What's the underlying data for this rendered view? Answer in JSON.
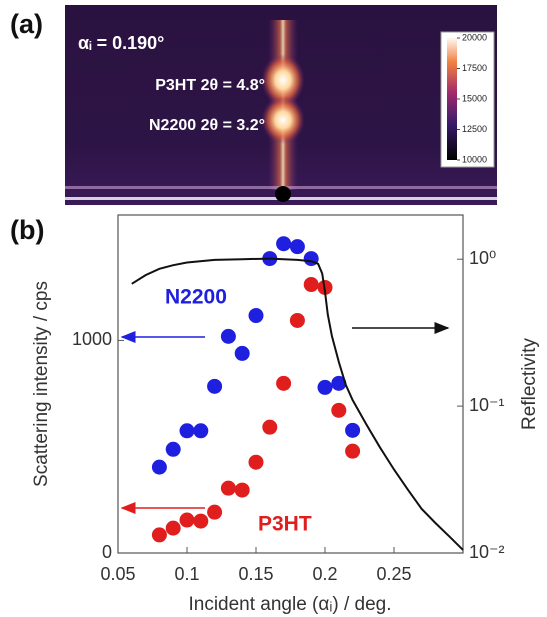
{
  "image": {
    "panel_label": "(a)",
    "incidence": "αᵢ = 0.190°",
    "p3ht_peak": "P3HT 2θ = 4.8°",
    "n2200_peak": "N2200 2θ = 3.2°",
    "colorbar": {
      "lim": [
        10000,
        20000
      ],
      "ticks": [
        20000,
        17500,
        15000,
        12500,
        10000
      ]
    }
  },
  "chart_data": {
    "type": "scatter",
    "panel_label": "(b)",
    "x_label": "Incident angle (αᵢ) / deg.",
    "y_label": "Scattering intensity / cps",
    "y2_label": "Reflectivity",
    "xlim": [
      0.05,
      0.3
    ],
    "xticks": [
      0.05,
      0.1,
      0.15,
      0.2,
      0.25
    ],
    "ylim": [
      0,
      1590
    ],
    "yticks": [
      0,
      1000
    ],
    "y2lim": [
      0.01,
      2
    ],
    "y2_log": true,
    "y2ticks": [
      {
        "value": 0.01,
        "label": "10⁻²"
      },
      {
        "value": 0.1,
        "label": "10⁻¹"
      },
      {
        "value": 1,
        "label": "10⁰"
      }
    ],
    "series": [
      {
        "name": "N2200",
        "color": "#1f1fe0",
        "x": [
          0.08,
          0.09,
          0.1,
          0.11,
          0.12,
          0.13,
          0.14,
          0.15,
          0.16,
          0.17,
          0.18,
          0.19,
          0.2,
          0.21,
          0.22
        ],
        "values": [
          404,
          488,
          575,
          575,
          784,
          1019,
          939,
          1117,
          1385,
          1455,
          1441,
          1385,
          779,
          798,
          577
        ]
      },
      {
        "name": "P3HT",
        "color": "#e01e1e",
        "x": [
          0.08,
          0.09,
          0.1,
          0.11,
          0.12,
          0.13,
          0.14,
          0.15,
          0.16,
          0.17,
          0.18,
          0.19,
          0.2,
          0.21,
          0.22
        ],
        "values": [
          85,
          117,
          155,
          150,
          192,
          305,
          296,
          427,
          592,
          798,
          1094,
          1263,
          1249,
          671,
          479
        ]
      },
      {
        "type": "line",
        "axis": "y2",
        "color": "#111111",
        "x": [
          0.06,
          0.07,
          0.08,
          0.09,
          0.1,
          0.12,
          0.14,
          0.16,
          0.18,
          0.19,
          0.195,
          0.198,
          0.2,
          0.202,
          0.205,
          0.21,
          0.215,
          0.22,
          0.23,
          0.24,
          0.25,
          0.26,
          0.27,
          0.28,
          0.29,
          0.3
        ],
        "values": [
          0.68,
          0.78,
          0.86,
          0.91,
          0.95,
          0.99,
          1.0,
          1.01,
          0.99,
          0.97,
          0.93,
          0.8,
          0.6,
          0.42,
          0.3,
          0.2,
          0.14,
          0.11,
          0.075,
          0.052,
          0.037,
          0.027,
          0.02,
          0.016,
          0.013,
          0.0105
        ]
      }
    ]
  }
}
